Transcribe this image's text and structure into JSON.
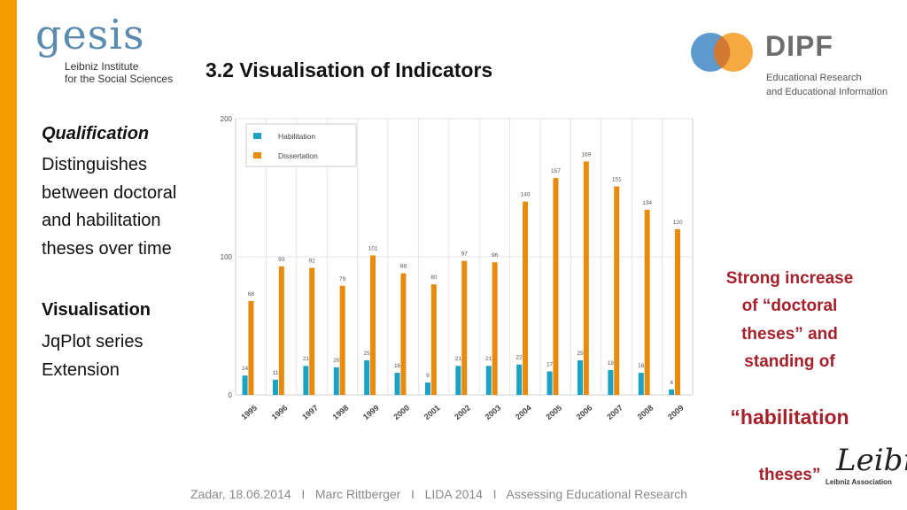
{
  "header": {
    "title": "3.2 Visualisation of Indicators",
    "gesis_logo": {
      "word": "gesis",
      "line1": "Leibniz Institute",
      "line2": "for the Social Sciences"
    },
    "dipf_logo": {
      "word": "DIPF",
      "line1": "Educational Research",
      "line2": "and Educational Information"
    }
  },
  "left": {
    "qualification_heading": "Qualification",
    "qualification_text": "Distinguishes\nbetween doctoral\nand habilitation\ntheses over time",
    "visualisation_heading": "Visualisation",
    "visualisation_text": "JqPlot series\nExtension"
  },
  "annotation": {
    "line1": "Strong increase\nof “doctoral\ntheses” and\nstanding of",
    "line2": "“habilitation",
    "line3": "theses”"
  },
  "footer": {
    "text": "Zadar, 18.06.2014   I   Marc Rittberger   I   LIDA 2014   I   Assessing Educational Research"
  },
  "leibniz_logo": {
    "signature": "Leibniz",
    "caption": "Leibniz Association"
  },
  "colors": {
    "accent": "#f59b00",
    "habilitation": "#1ba2c4",
    "dissertation": "#e88a0c",
    "annotation": "#a5202a"
  },
  "chart_data": {
    "type": "bar",
    "categories": [
      "1995",
      "1996",
      "1997",
      "1998",
      "1999",
      "2000",
      "2001",
      "2002",
      "2003",
      "2004",
      "2005",
      "2006",
      "2007",
      "2008",
      "2009"
    ],
    "series": [
      {
        "name": "Habilitation",
        "values": [
          14,
          11,
          21,
          20,
          25,
          16,
          9,
          21,
          21,
          22,
          17,
          25,
          18,
          16,
          4
        ]
      },
      {
        "name": "Dissertation",
        "values": [
          68,
          93,
          92,
          79,
          101,
          88,
          80,
          97,
          96,
          140,
          157,
          169,
          151,
          134,
          120
        ]
      }
    ],
    "yticks": [
      "0",
      "100",
      "200"
    ],
    "ylim": [
      0,
      200
    ],
    "grid": true,
    "legend_position": "top-left"
  }
}
